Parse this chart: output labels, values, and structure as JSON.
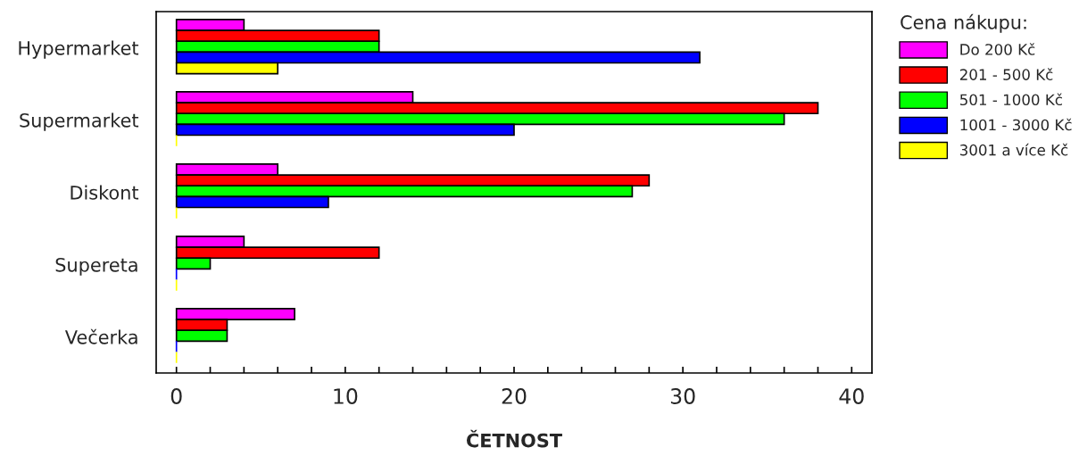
{
  "chart_data": {
    "type": "bar",
    "orientation": "horizontal",
    "xlabel": "ČETNOST",
    "legend_title": "Cena nákupu:",
    "legend": "right",
    "grid": false,
    "categories": [
      "Hypermarket",
      "Supermarket",
      "Diskont",
      "Supereta",
      "Večerka"
    ],
    "xlim": [
      -1.2,
      41.2
    ],
    "xticks": [
      0,
      {
        "value": 2,
        "label": null
      },
      {
        "value": 4,
        "label": null
      },
      {
        "value": 6,
        "label": null
      },
      {
        "value": 8,
        "label": null
      },
      10,
      {
        "value": 12,
        "label": null
      },
      {
        "value": 14,
        "label": null
      },
      {
        "value": 16,
        "label": null
      },
      {
        "value": 18,
        "label": null
      },
      20,
      {
        "value": 22,
        "label": null
      },
      {
        "value": 24,
        "label": null
      },
      {
        "value": 26,
        "label": null
      },
      {
        "value": 28,
        "label": null
      },
      30,
      {
        "value": 32,
        "label": null
      },
      {
        "value": 34,
        "label": null
      },
      {
        "value": 36,
        "label": null
      },
      {
        "value": 38,
        "label": null
      },
      40
    ],
    "series": [
      {
        "name": "Do 200 Kč",
        "color": "#ff00ff",
        "values": [
          4,
          14,
          6,
          4,
          7
        ]
      },
      {
        "name": "201 - 500 Kč",
        "color": "#ff0000",
        "values": [
          12,
          38,
          28,
          12,
          3
        ]
      },
      {
        "name": "501 - 1000 Kč",
        "color": "#00ff00",
        "values": [
          12,
          36,
          27,
          2,
          3
        ]
      },
      {
        "name": "1001 - 3000 Kč",
        "color": "#0000ff",
        "values": [
          31,
          20,
          9,
          0,
          0
        ]
      },
      {
        "name": "3001 a více Kč",
        "color": "#ffff00",
        "values": [
          6,
          0,
          0,
          0,
          0
        ]
      }
    ]
  }
}
